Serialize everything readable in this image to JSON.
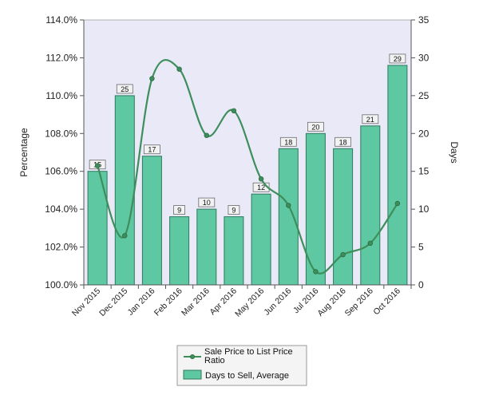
{
  "chart_data": {
    "type": "bar",
    "categories": [
      "Nov 2015",
      "Dec 2015",
      "Jan 2016",
      "Feb 2016",
      "Mar 2016",
      "Apr 2016",
      "May 2016",
      "Jun 2016",
      "Jul 2016",
      "Aug 2016",
      "Sep 2016",
      "Oct 2016"
    ],
    "series": [
      {
        "name": "Days to Sell, Average",
        "kind": "bar",
        "axis": "right",
        "values": [
          15,
          25,
          17,
          9,
          10,
          9,
          12,
          18,
          20,
          18,
          21,
          29
        ],
        "color": "#5ec8a2",
        "border_color": "#2f7a5c"
      },
      {
        "name": "Sale Price to List Price Ratio",
        "kind": "line",
        "axis": "left",
        "values": [
          106.3,
          102.6,
          110.9,
          111.4,
          107.9,
          109.2,
          105.6,
          104.2,
          100.7,
          101.6,
          102.2,
          104.3
        ],
        "color": "#3e8e5c"
      }
    ],
    "ylabel": "Percentage",
    "y2label": "Days",
    "ylim": [
      100,
      114
    ],
    "y2lim": [
      0,
      35
    ],
    "yticks": [
      "100.0%",
      "102.0%",
      "104.0%",
      "106.0%",
      "108.0%",
      "110.0%",
      "112.0%",
      "114.0%"
    ],
    "y2ticks": [
      "0",
      "5",
      "10",
      "15",
      "20",
      "25",
      "30",
      "35"
    ],
    "grid": false,
    "legend_position": "bottom-center",
    "plot_background": "#e9e9f8"
  }
}
